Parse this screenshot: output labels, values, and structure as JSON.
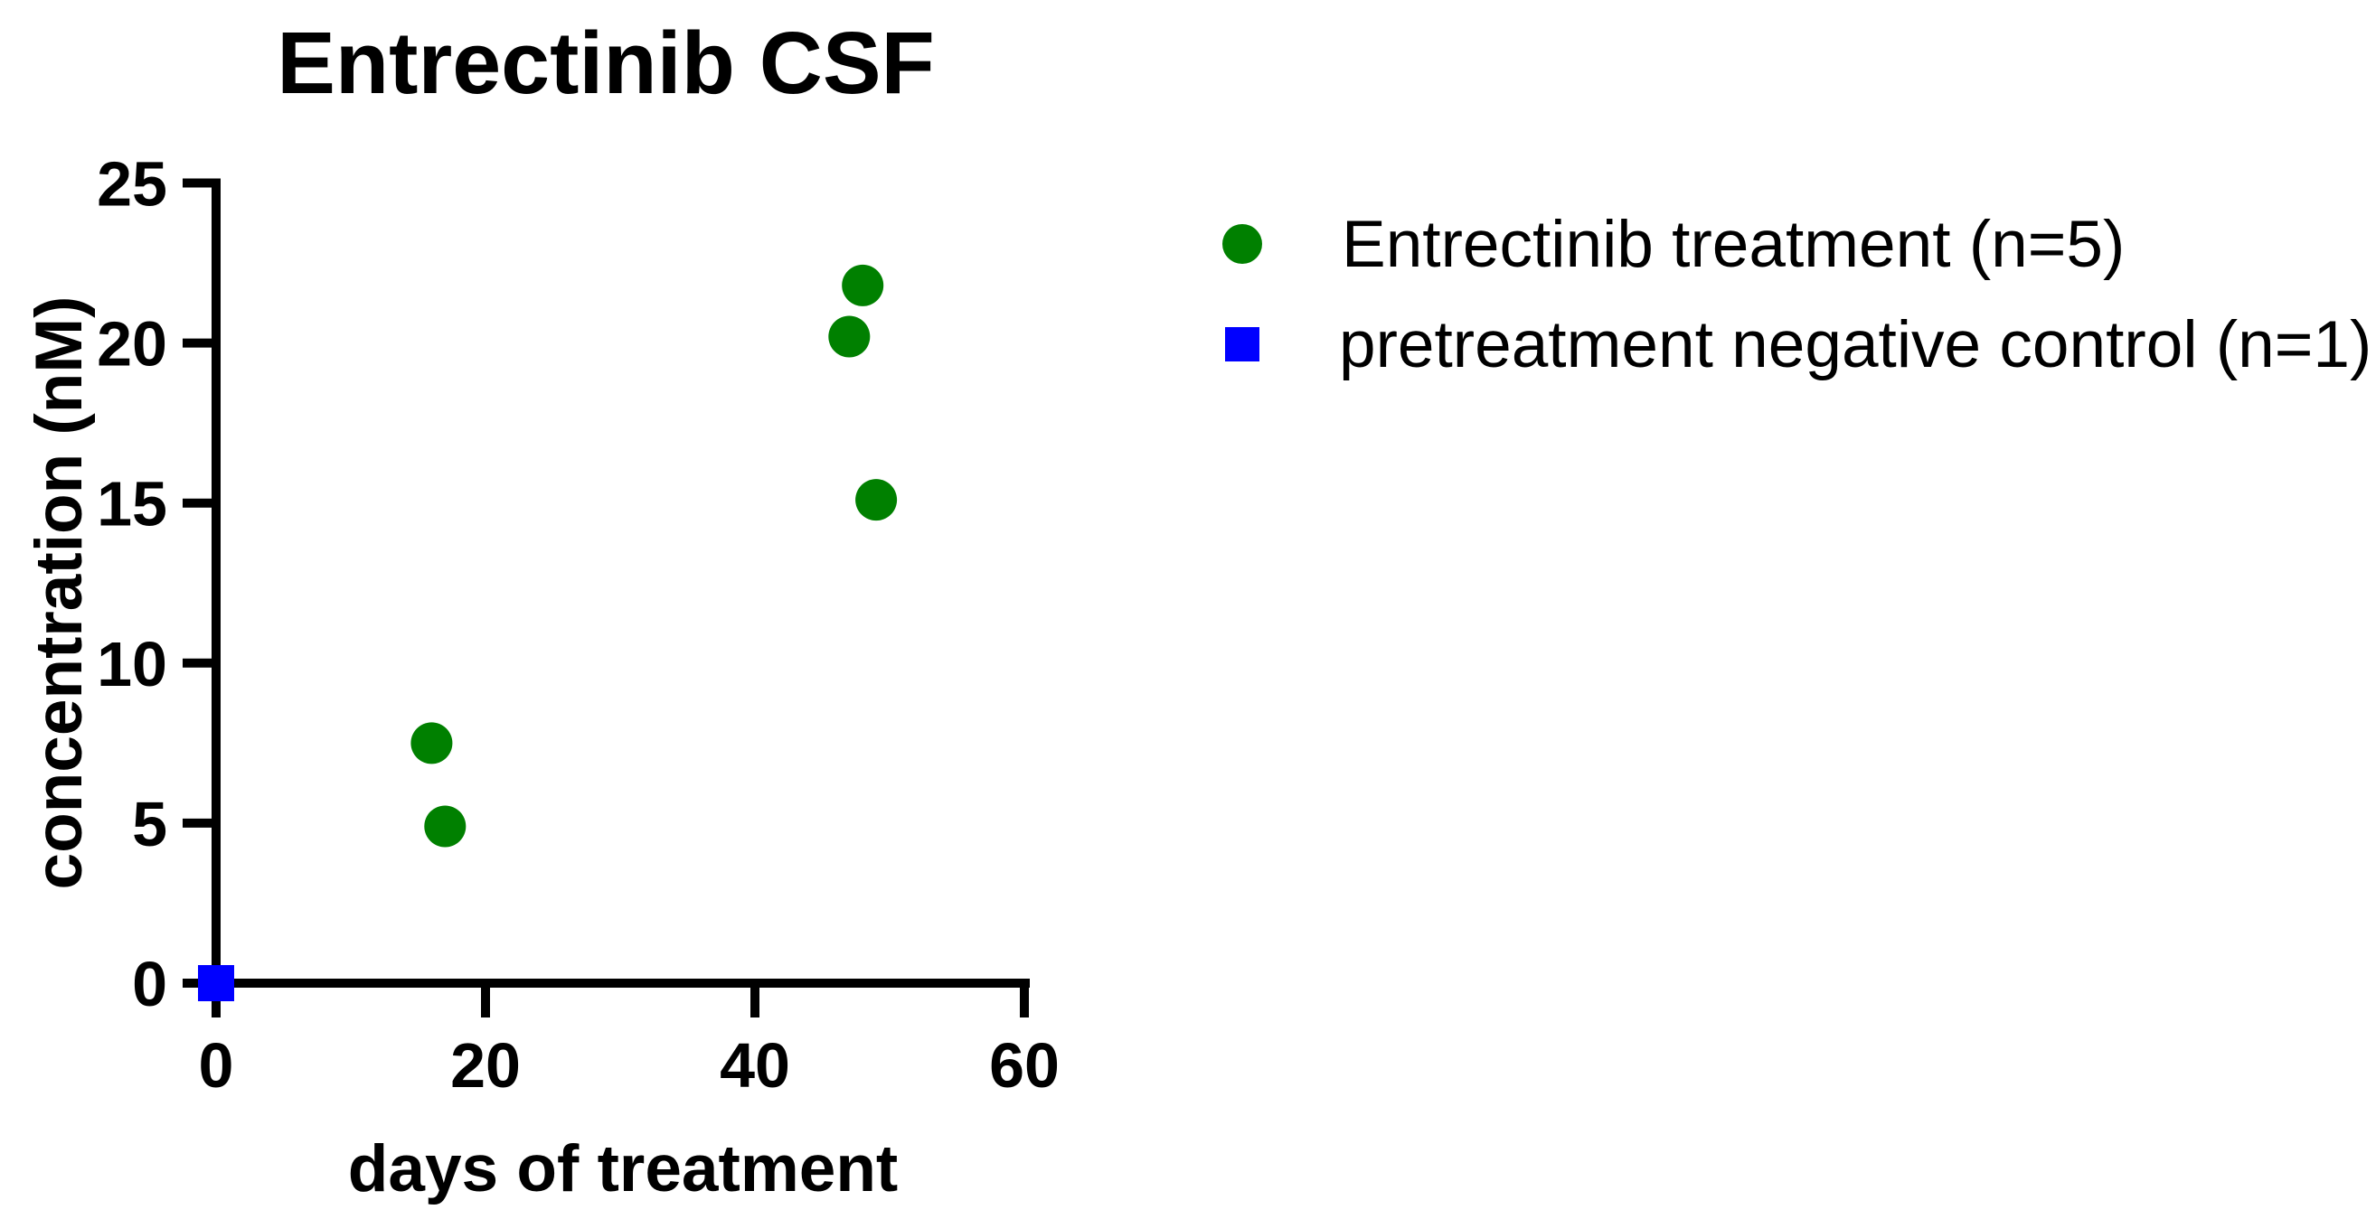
{
  "title": "Entrectinib CSF",
  "chart_data": {
    "type": "scatter",
    "title": "Entrectinib CSF",
    "xlabel": "days of treatment",
    "ylabel": "concentration (nM)",
    "xlim": [
      0,
      60
    ],
    "ylim": [
      0,
      25
    ],
    "xticks": [
      0,
      20,
      40,
      60
    ],
    "yticks": [
      0,
      5,
      10,
      15,
      20,
      25
    ],
    "grid": false,
    "legend_position": "right of plot, top",
    "axis_color": "#000000",
    "series": [
      {
        "name": "Entrectinib treatment (n=5)",
        "marker": "circle",
        "color": "#008000",
        "points": [
          [
            16,
            7.5
          ],
          [
            17,
            4.9
          ],
          [
            47,
            20.2
          ],
          [
            48,
            21.8
          ],
          [
            49,
            15.1
          ]
        ]
      },
      {
        "name": "pretreatment negative control (n=1)",
        "marker": "square",
        "color": "#0000FF",
        "points": [
          [
            0,
            0
          ]
        ]
      }
    ]
  }
}
